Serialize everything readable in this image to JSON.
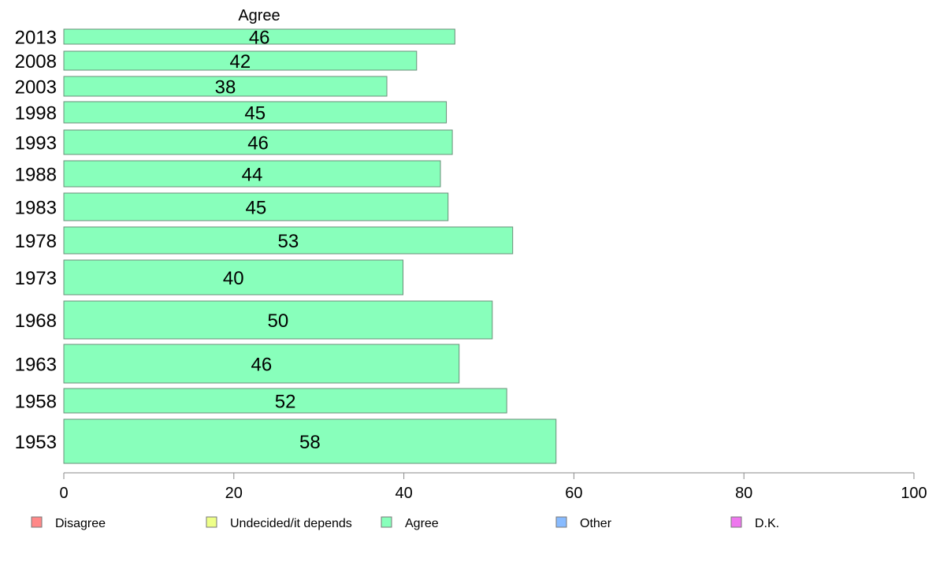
{
  "chart_data": {
    "type": "bar",
    "orientation": "horizontal",
    "column_header": "Agree",
    "categories": [
      "2013",
      "2008",
      "2003",
      "1998",
      "1993",
      "1988",
      "1983",
      "1978",
      "1973",
      "1968",
      "1963",
      "1958",
      "1953"
    ],
    "series": [
      {
        "name": "Agree",
        "color": "#88ffbb",
        "values": [
          46,
          41.5,
          38,
          45,
          45.7,
          44.3,
          45.2,
          52.8,
          39.9,
          50.4,
          46.5,
          52.1,
          57.9
        ],
        "labels": [
          "46",
          "42",
          "38",
          "45",
          "46",
          "44",
          "45",
          "53",
          "40",
          "50",
          "46",
          "52",
          "58"
        ]
      }
    ],
    "xlim": [
      0,
      100
    ],
    "xticks": [
      "0",
      "20",
      "40",
      "60",
      "80",
      "100"
    ],
    "grid": false,
    "legend_position": "bottom",
    "legend": [
      {
        "label": "Disagree",
        "color": "#ff8888"
      },
      {
        "label": "Undecided/it depends",
        "color": "#eeff88"
      },
      {
        "label": "Agree",
        "color": "#88ffbb"
      },
      {
        "label": "Other",
        "color": "#88bbff"
      },
      {
        "label": "D.K.",
        "color": "#ee77ee"
      }
    ]
  }
}
